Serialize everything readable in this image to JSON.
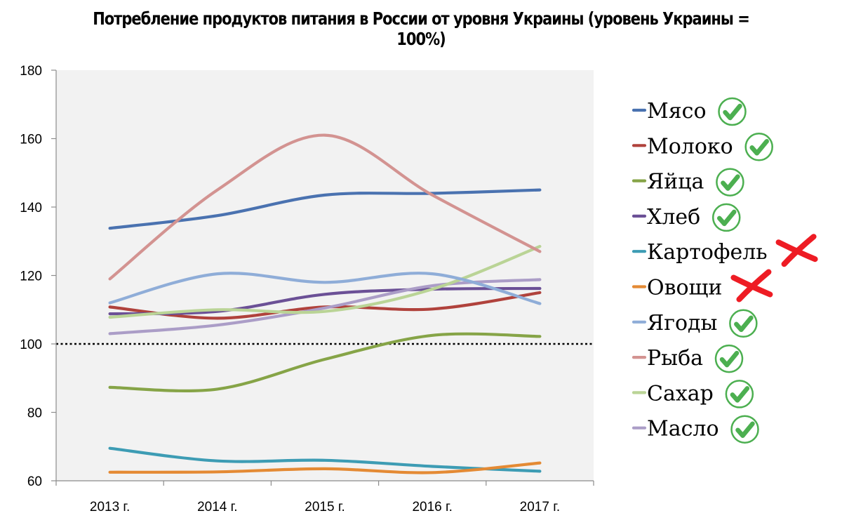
{
  "chart_data": {
    "type": "line",
    "title": "Потребление продуктов питания в России от уровня Украины (уровень Украины = 100%)",
    "xlabel": "",
    "ylabel": "",
    "categories": [
      "2013 г.",
      "2014 г.",
      "2015 г.",
      "2016 г.",
      "2017 г."
    ],
    "ylim": [
      60,
      180
    ],
    "yticks": [
      60,
      80,
      100,
      120,
      140,
      160,
      180
    ],
    "reference_line": 100,
    "grid": false,
    "legend_position": "right",
    "series": [
      {
        "name": "Мясо",
        "color": "#4a72b0",
        "status": "check",
        "values": [
          133.8,
          137.5,
          143.5,
          144.0,
          145.0
        ]
      },
      {
        "name": "Молоко",
        "color": "#b0423c",
        "status": "check",
        "values": [
          110.8,
          107.5,
          110.8,
          110.2,
          115.0
        ]
      },
      {
        "name": "Яйца",
        "color": "#86a447",
        "status": "check",
        "values": [
          87.3,
          86.8,
          95.5,
          102.5,
          102.2
        ]
      },
      {
        "name": "Хлеб",
        "color": "#6b5096",
        "status": "check",
        "values": [
          108.8,
          109.5,
          114.5,
          116.0,
          116.2
        ]
      },
      {
        "name": "Картофель",
        "color": "#3d9cb4",
        "status": "cross",
        "values": [
          69.5,
          65.8,
          66.0,
          64.2,
          62.8
        ]
      },
      {
        "name": "Овощи",
        "color": "#e48a34",
        "status": "cross",
        "values": [
          62.5,
          62.6,
          63.5,
          62.4,
          65.2
        ]
      },
      {
        "name": "Ягоды",
        "color": "#8fadd8",
        "status": "check",
        "values": [
          112.0,
          120.5,
          118.0,
          120.5,
          111.8
        ]
      },
      {
        "name": "Рыба",
        "color": "#d39391",
        "status": "check",
        "values": [
          119.0,
          145.0,
          161.0,
          143.5,
          127.0
        ]
      },
      {
        "name": "Сахар",
        "color": "#bad496",
        "status": "check",
        "values": [
          107.8,
          110.0,
          109.5,
          116.0,
          128.5
        ]
      },
      {
        "name": "Масло",
        "color": "#ab9dc7",
        "status": "check",
        "values": [
          103.0,
          105.5,
          110.5,
          117.0,
          118.8
        ]
      }
    ]
  },
  "colors": {
    "plot_background": "#f2f2f2",
    "axis": "#8c8c8c",
    "check_icon": "#4caf50",
    "cross_icon": "#ee1c24"
  }
}
